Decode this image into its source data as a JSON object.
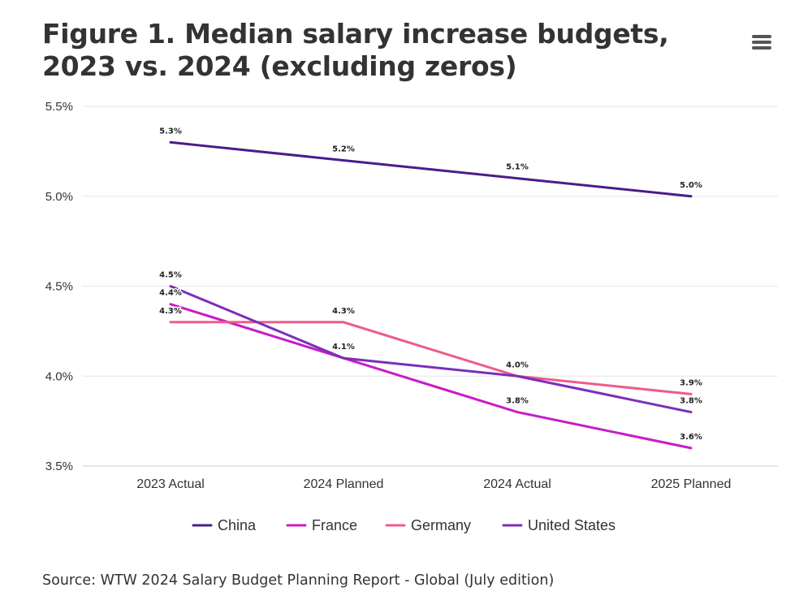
{
  "header": {
    "title": "Figure 1. Median salary increase budgets, 2023 vs. 2024 (excluding zeros)",
    "menu_icon": "hamburger-menu-icon"
  },
  "footer": {
    "source": "Source: WTW 2024 Salary Budget Planning Report - Global (July edition)"
  },
  "chart_data": {
    "type": "line",
    "title": "Figure 1. Median salary increase budgets, 2023 vs. 2024 (excluding zeros)",
    "xlabel": "",
    "ylabel": "",
    "categories": [
      "2023 Actual",
      "2024 Planned",
      "2024 Actual",
      "2025 Planned"
    ],
    "ylim": [
      3.5,
      5.5
    ],
    "yticks": [
      3.5,
      4.0,
      4.5,
      5.0,
      5.5
    ],
    "ytick_labels": [
      "3.5%",
      "4.0%",
      "4.5%",
      "5.0%",
      "5.5%"
    ],
    "grid": true,
    "legend_position": "bottom-center",
    "series": [
      {
        "name": "China",
        "color": "#4b1c8c",
        "values": [
          5.3,
          5.2,
          5.1,
          5.0
        ],
        "labels": [
          "5.3%",
          "5.2%",
          "5.1%",
          "5.0%"
        ]
      },
      {
        "name": "France",
        "color": "#c81cc8",
        "values": [
          4.4,
          4.1,
          3.8,
          3.6
        ],
        "labels": [
          "4.4%",
          "",
          "3.8%",
          "3.6%"
        ]
      },
      {
        "name": "Germany",
        "color": "#ef5b8c",
        "values": [
          4.3,
          4.3,
          4.0,
          3.9
        ],
        "labels": [
          "4.3%",
          "4.3%",
          "",
          "3.9%"
        ]
      },
      {
        "name": "United States",
        "color": "#7b2fb8",
        "values": [
          4.5,
          4.1,
          4.0,
          3.8
        ],
        "labels": [
          "4.5%",
          "4.1%",
          "4.0%",
          "3.8%"
        ]
      }
    ]
  }
}
